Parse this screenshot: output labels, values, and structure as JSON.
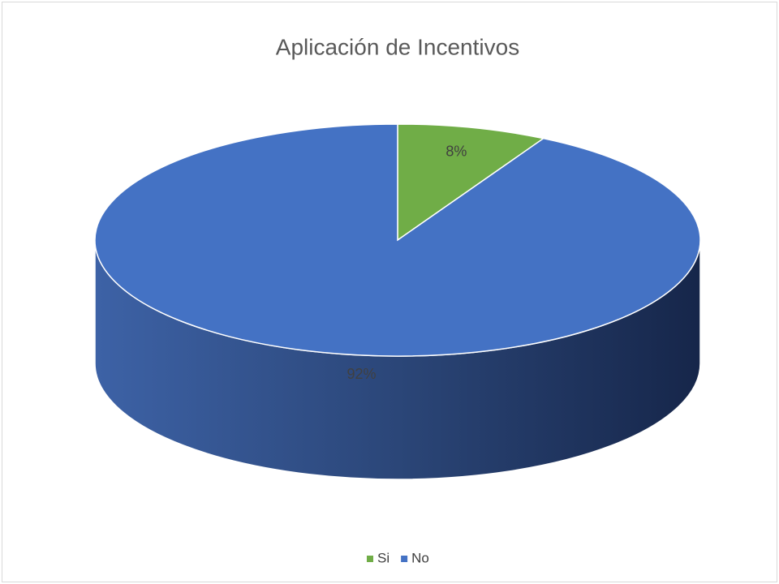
{
  "chart_data": {
    "type": "pie",
    "title": "Aplicación de Incentivos",
    "categories": [
      "Si",
      "No"
    ],
    "values": [
      8,
      92
    ],
    "value_labels": [
      "8%",
      "92%"
    ],
    "colors": [
      "#70ad47",
      "#4472c4"
    ],
    "legend": "bottom"
  }
}
